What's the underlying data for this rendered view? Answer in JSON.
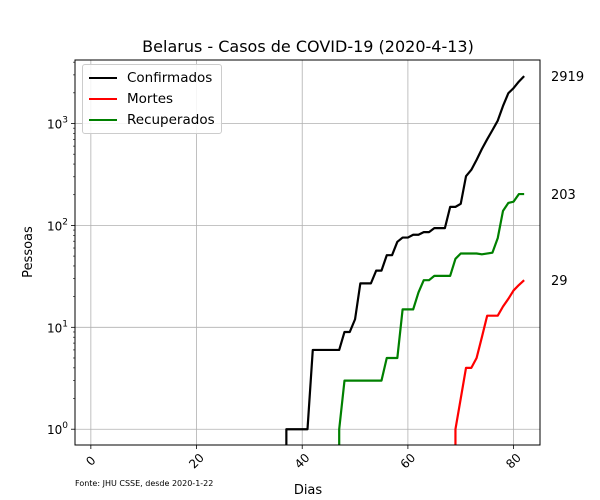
{
  "chart_data": {
    "type": "line",
    "title": "Belarus - Casos de COVID-19 (2020-4-13)",
    "xlabel": "Dias",
    "ylabel": "Pessoas",
    "yscale": "log",
    "xlim": [
      -3,
      85
    ],
    "ylim": [
      0.7,
      4200
    ],
    "xticks": [
      0,
      20,
      40,
      60,
      80
    ],
    "yticks": [
      {
        "value": 1,
        "label": "10^0"
      },
      {
        "value": 10,
        "label": "10^1"
      },
      {
        "value": 100,
        "label": "10^2"
      },
      {
        "value": 1000,
        "label": "10^3"
      }
    ],
    "grid": true,
    "legend_position": "top-left",
    "source_note": "Fonte: JHU CSSE, desde 2020-1-22",
    "series": [
      {
        "name": "Confirmados",
        "color": "#000000",
        "final_label": "2919",
        "points": [
          [
            37,
            0.5
          ],
          [
            37,
            1
          ],
          [
            41,
            1
          ],
          [
            42,
            6
          ],
          [
            47,
            6
          ],
          [
            48,
            9
          ],
          [
            49,
            9
          ],
          [
            50,
            12
          ],
          [
            51,
            27
          ],
          [
            53,
            27
          ],
          [
            54,
            36
          ],
          [
            55,
            36
          ],
          [
            56,
            51
          ],
          [
            57,
            51
          ],
          [
            58,
            69
          ],
          [
            59,
            76
          ],
          [
            60,
            76
          ],
          [
            61,
            81
          ],
          [
            62,
            81
          ],
          [
            63,
            86
          ],
          [
            64,
            86
          ],
          [
            65,
            94
          ],
          [
            67,
            94
          ],
          [
            68,
            152
          ],
          [
            69,
            152
          ],
          [
            70,
            163
          ],
          [
            71,
            304
          ],
          [
            72,
            351
          ],
          [
            73,
            440
          ],
          [
            74,
            562
          ],
          [
            75,
            700
          ],
          [
            76,
            861
          ],
          [
            77,
            1066
          ],
          [
            78,
            1486
          ],
          [
            79,
            1981
          ],
          [
            80,
            2226
          ],
          [
            81,
            2578
          ],
          [
            82,
            2919
          ]
        ]
      },
      {
        "name": "Mortes",
        "color": "#ff0000",
        "final_label": "29",
        "points": [
          [
            69,
            0.5
          ],
          [
            69,
            1
          ],
          [
            70,
            2
          ],
          [
            71,
            4
          ],
          [
            72,
            4
          ],
          [
            73,
            5
          ],
          [
            74,
            8
          ],
          [
            75,
            13
          ],
          [
            76,
            13
          ],
          [
            77,
            13
          ],
          [
            78,
            16
          ],
          [
            79,
            19
          ],
          [
            80,
            23
          ],
          [
            81,
            26
          ],
          [
            82,
            29
          ]
        ]
      },
      {
        "name": "Recuperados",
        "color": "#008000",
        "final_label": "203",
        "points": [
          [
            47,
            0.5
          ],
          [
            47,
            1
          ],
          [
            48,
            3
          ],
          [
            55,
            3
          ],
          [
            56,
            5
          ],
          [
            58,
            5
          ],
          [
            59,
            15
          ],
          [
            61,
            15
          ],
          [
            62,
            22
          ],
          [
            63,
            29
          ],
          [
            64,
            29
          ],
          [
            65,
            32
          ],
          [
            68,
            32
          ],
          [
            69,
            47
          ],
          [
            70,
            53
          ],
          [
            73,
            53
          ],
          [
            74,
            52
          ],
          [
            76,
            54
          ],
          [
            77,
            75
          ],
          [
            78,
            139
          ],
          [
            79,
            166
          ],
          [
            80,
            171
          ],
          [
            81,
            203
          ],
          [
            82,
            203
          ]
        ]
      }
    ]
  }
}
